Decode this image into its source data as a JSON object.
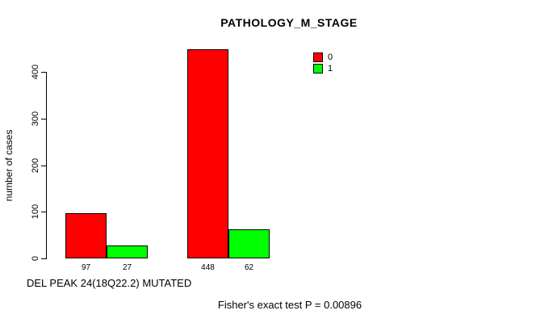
{
  "chart_data": {
    "type": "bar",
    "title": "PATHOLOGY_M_STAGE",
    "ylabel": "number of cases",
    "xlabel": "DEL PEAK 24(18Q22.2) MUTATED",
    "annotation": "Fisher's exact test P = 0.00896",
    "y_ticks": [
      0,
      100,
      200,
      300,
      400
    ],
    "ylim": [
      0,
      448
    ],
    "grid": false,
    "legend_position": "top-right",
    "series": [
      {
        "name": "0",
        "color": "#ff0000",
        "values": [
          97,
          448
        ]
      },
      {
        "name": "1",
        "color": "#00ff00",
        "values": [
          27,
          62
        ]
      }
    ],
    "groups": [
      {
        "bar_labels": [
          "97",
          "27"
        ]
      },
      {
        "bar_labels": [
          "448",
          "62"
        ]
      }
    ],
    "colors": {
      "background": "#ffffff",
      "axis": "#000000",
      "text": "#000000",
      "series0": "#ff0000",
      "series1": "#00ff00"
    }
  }
}
